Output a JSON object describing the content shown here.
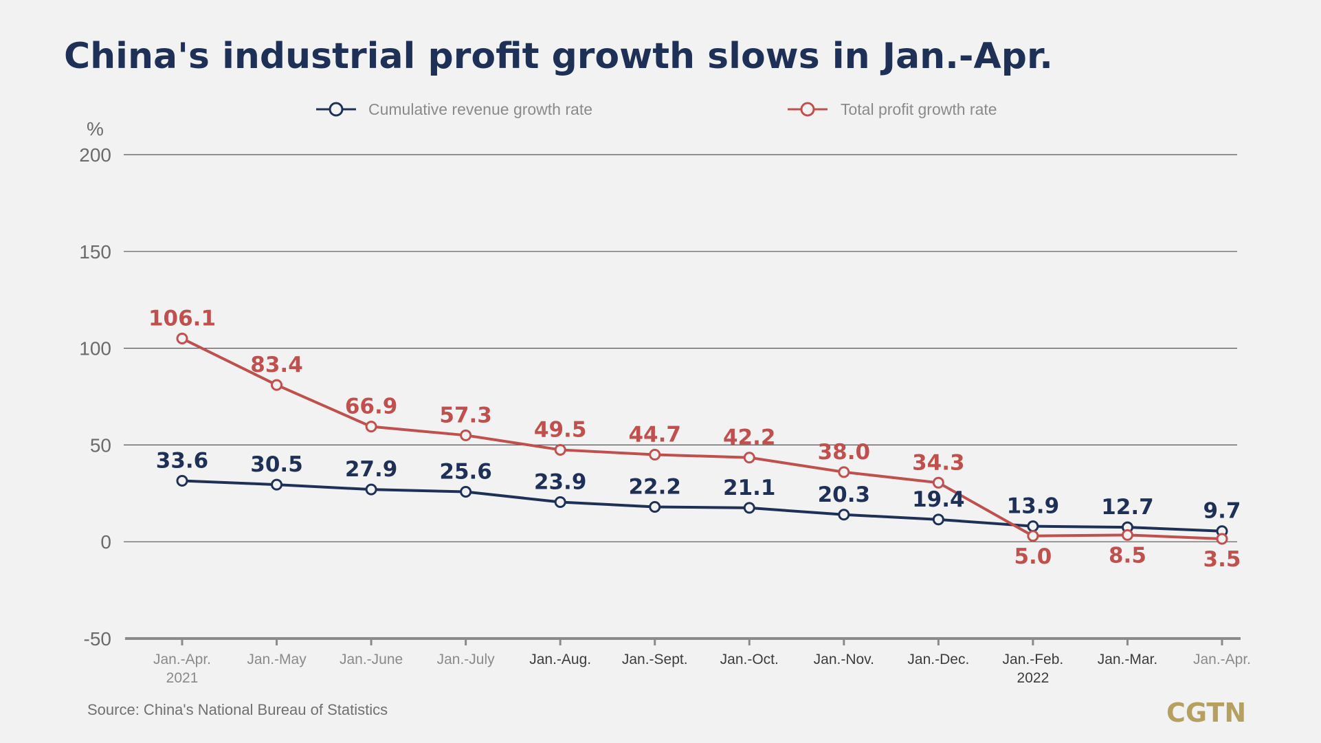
{
  "chart_data": {
    "type": "line",
    "title": "China's industrial profit growth slows in Jan.-Apr.",
    "ylabel": "%",
    "ylim": [
      -50,
      200
    ],
    "yticks": [
      200,
      150,
      100,
      50,
      0,
      -50
    ],
    "grid": true,
    "legend_position": "top",
    "categories": [
      [
        "Jan.-Apr.",
        "2021"
      ],
      [
        "Jan.-May"
      ],
      [
        "Jan.-June"
      ],
      [
        "Jan.-July"
      ],
      [
        "Jan.-Aug."
      ],
      [
        "Jan.-Sept."
      ],
      [
        "Jan.-Oct."
      ],
      [
        "Jan.-Nov."
      ],
      [
        "Jan.-Dec."
      ],
      [
        "Jan.-Feb.",
        "2022"
      ],
      [
        "Jan.-Mar."
      ],
      [
        "Jan.-Apr."
      ]
    ],
    "series": [
      {
        "name": "Cumulative revenue growth rate",
        "color": "#1f3056",
        "values": [
          33.6,
          30.5,
          27.9,
          25.6,
          23.9,
          22.2,
          21.1,
          20.3,
          19.4,
          13.9,
          12.7,
          9.7
        ],
        "plotted": [
          31.5,
          29.5,
          27,
          25.8,
          20.5,
          18,
          17.5,
          14,
          11.5,
          8,
          7.5,
          5.5
        ],
        "labels": [
          "33.6",
          "30.5",
          "27.9",
          "25.6",
          "23.9",
          "22.2",
          "21.1",
          "20.3",
          "19.4",
          "13.9",
          "12.7",
          "9.7"
        ],
        "label_side": [
          "above",
          "above",
          "above",
          "above",
          "above",
          "above",
          "above",
          "above",
          "above",
          "above",
          "above",
          "above"
        ]
      },
      {
        "name": "Total profit growth rate",
        "color": "#c0504d",
        "values": [
          106.1,
          83.4,
          66.9,
          57.3,
          49.5,
          44.7,
          42.2,
          38.0,
          34.3,
          5.0,
          8.5,
          3.5
        ],
        "plotted": [
          105,
          81,
          59.5,
          55,
          47.5,
          45,
          43.5,
          36,
          30.5,
          3,
          3.5,
          1.5
        ],
        "labels": [
          "106.1",
          "83.4",
          "66.9",
          "57.3",
          "49.5",
          "44.7",
          "42.2",
          "38.0",
          "34.3",
          "5.0",
          "8.5",
          "3.5"
        ],
        "label_side": [
          "above",
          "above",
          "above",
          "above",
          "above",
          "above",
          "above",
          "above",
          "above",
          "below",
          "below",
          "below"
        ]
      }
    ],
    "source": "Source: China's National Bureau of Statistics",
    "logo": "CGTN"
  }
}
